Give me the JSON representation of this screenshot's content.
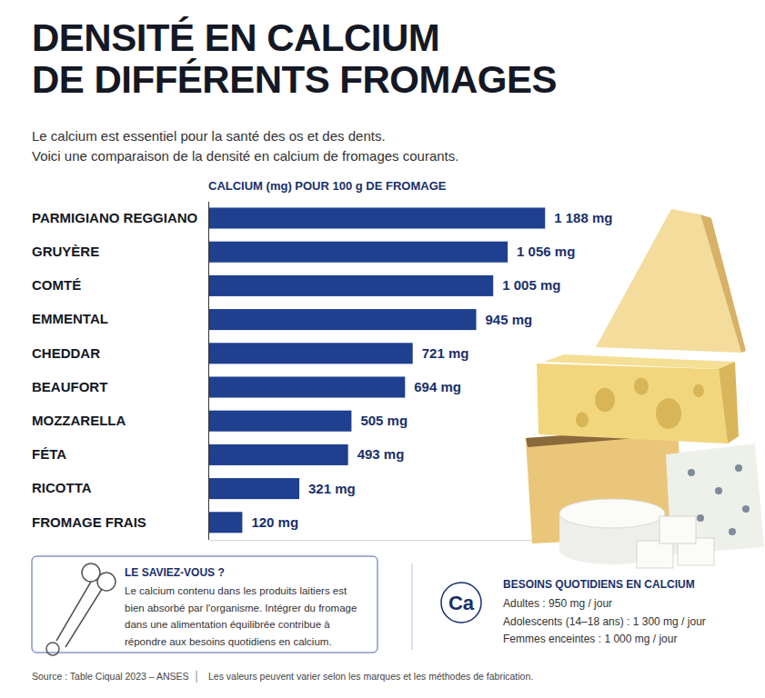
{
  "header": {
    "title_lines": [
      "DENSITÉ EN CALCIUM",
      "DE DIFFÉRENTS FROMAGES"
    ],
    "subtitle_lines": [
      "Le calcium est essentiel pour la santé des os et des dents.",
      "Voici une comparaison de la densité en calcium de fromages courants."
    ]
  },
  "chart_data": {
    "type": "bar",
    "orientation": "horizontal",
    "title": "CALCIUM (mg) POUR 100 g DE FROMAGE",
    "categories": [
      "PARMIGIANO REGGIANO",
      "GRUYÈRE",
      "COMTÉ",
      "EMMENTAL",
      "CHEDDAR",
      "BEAUFORT",
      "MOZZARELLA",
      "FÉTA",
      "RICOTTA",
      "FROMAGE FRAIS"
    ],
    "values": [
      1188,
      1056,
      1005,
      945,
      721,
      694,
      505,
      493,
      321,
      120
    ],
    "value_labels": [
      "1 188 mg",
      "1 056 mg",
      "1 005 mg",
      "945 mg",
      "721 mg",
      "694 mg",
      "505 mg",
      "493 mg",
      "321 mg",
      "120 mg"
    ],
    "data_labels": true,
    "tick_labels": "y",
    "color": "#1f3f8f",
    "xlim": [
      0,
      1200
    ]
  },
  "info_box": {
    "title": "LE SAVIEZ-VOUS ?",
    "lines": [
      "Le calcium contenu dans les produits laitiers est",
      "bien absorbé par l'organisme. Intégrer du fromage",
      "dans une alimentation équilibrée contribue à",
      "répondre aux besoins quotidiens en calcium."
    ]
  },
  "needs": {
    "symbol": "Ca",
    "title": "BESOINS QUOTIDIENS EN CALCIUM",
    "lines": [
      "Adultes : 950 mg / jour",
      "Adolescents (14–18 ans) : 1 300 mg / jour",
      "Femmes enceintes : 1 000 mg / jour"
    ]
  },
  "footer": {
    "source": "Source : Table Ciqual 2023 – ANSES",
    "note": "Les valeurs peuvent varier selon les marques et les méthodes de fabrication."
  }
}
